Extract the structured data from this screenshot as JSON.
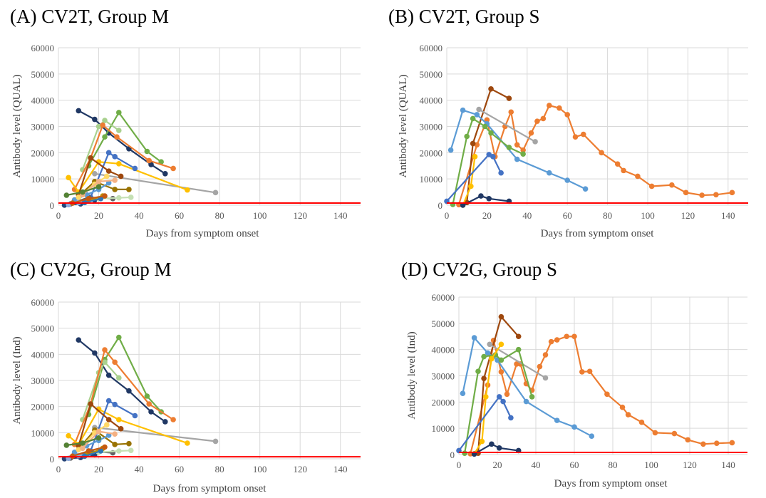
{
  "chart_data": [
    {
      "type": "line",
      "panel_title": "(A) CV2T, Group M",
      "xlabel": "Days from symptom onset",
      "ylabel": "Antibody level (QUAL)",
      "xlim": [
        0,
        150
      ],
      "ylim": [
        0,
        60000
      ],
      "xticks": [
        0,
        20,
        40,
        60,
        80,
        100,
        120,
        140
      ],
      "yticks": [
        0,
        10000,
        20000,
        30000,
        40000,
        50000,
        60000
      ],
      "grid": true,
      "threshold": {
        "y": 800,
        "color": "#ff0000"
      },
      "series": [
        {
          "color": "#203864",
          "x": [
            10,
            18,
            25,
            35,
            46,
            53
          ],
          "y": [
            36000,
            32700,
            27500,
            21500,
            15500,
            12000
          ]
        },
        {
          "color": "#70ad47",
          "x": [
            15,
            23,
            30,
            44,
            51
          ],
          "y": [
            15000,
            26000,
            35300,
            20500,
            16500
          ]
        },
        {
          "color": "#a9d18e",
          "x": [
            12,
            20,
            23,
            30
          ],
          "y": [
            13500,
            30000,
            32300,
            28500
          ]
        },
        {
          "color": "#ed7d31",
          "x": [
            8,
            16,
            22,
            29,
            45,
            57
          ],
          "y": [
            6000,
            18000,
            30500,
            26000,
            17000,
            14000
          ]
        },
        {
          "color": "#a5a5a5",
          "x": [
            18,
            78
          ],
          "y": [
            12000,
            4800
          ]
        },
        {
          "color": "#ffc000",
          "x": [
            5,
            10,
            20,
            30,
            64
          ],
          "y": [
            10500,
            5000,
            16500,
            15800,
            5800
          ]
        },
        {
          "color": "#4472c4",
          "x": [
            16,
            25,
            28,
            38
          ],
          "y": [
            3000,
            20000,
            18500,
            14000
          ]
        },
        {
          "color": "#9e480e",
          "x": [
            10,
            16,
            25,
            31
          ],
          "y": [
            4000,
            18000,
            13000,
            11000
          ]
        },
        {
          "color": "#997300",
          "x": [
            8,
            18,
            28,
            35
          ],
          "y": [
            2000,
            9000,
            6000,
            6000
          ]
        },
        {
          "color": "#636363",
          "x": [
            6,
            15,
            27
          ],
          "y": [
            500,
            3000,
            2500
          ]
        },
        {
          "color": "#5b9bd5",
          "x": [
            8,
            14,
            20,
            25
          ],
          "y": [
            2000,
            4000,
            6000,
            8500
          ]
        },
        {
          "color": "#ffd966",
          "x": [
            10,
            18,
            24
          ],
          "y": [
            3000,
            8000,
            11000
          ]
        },
        {
          "color": "#f4b183",
          "x": [
            12,
            20,
            28
          ],
          "y": [
            4000,
            9000,
            9500
          ]
        },
        {
          "color": "#548235",
          "x": [
            4,
            12,
            20
          ],
          "y": [
            3800,
            5000,
            7000
          ]
        },
        {
          "color": "#264478",
          "x": [
            3,
            11,
            18
          ],
          "y": [
            0,
            500,
            2000
          ]
        },
        {
          "color": "#8faadc",
          "x": [
            5,
            10,
            15
          ],
          "y": [
            200,
            1000,
            1600
          ]
        },
        {
          "color": "#c5e0b4",
          "x": [
            20,
            30,
            36
          ],
          "y": [
            2500,
            2800,
            3000
          ]
        },
        {
          "color": "#bf9000",
          "x": [
            14,
            22
          ],
          "y": [
            1500,
            3500
          ]
        },
        {
          "color": "#2e75b6",
          "x": [
            13,
            21
          ],
          "y": [
            1000,
            2500
          ]
        },
        {
          "color": "#c55a11",
          "x": [
            7,
            15,
            23
          ],
          "y": [
            800,
            2500,
            3500
          ]
        }
      ]
    },
    {
      "type": "line",
      "panel_title": "(B) CV2T, Group S",
      "xlabel": "Days from symptom onset",
      "ylabel": "Antibody level (QUAL)",
      "xlim": [
        0,
        150
      ],
      "ylim": [
        0,
        60000
      ],
      "xticks": [
        0,
        20,
        40,
        60,
        80,
        100,
        120,
        140
      ],
      "yticks": [
        0,
        10000,
        20000,
        30000,
        40000,
        50000,
        60000
      ],
      "grid": true,
      "threshold": {
        "y": 800,
        "color": "#ff0000"
      },
      "series": [
        {
          "color": "#ed7d31",
          "x": [
            6,
            15,
            20,
            24,
            29,
            32,
            35,
            38,
            42,
            45,
            48,
            51,
            56,
            60,
            64,
            68,
            77,
            85,
            88,
            95,
            102,
            112,
            119,
            127,
            134,
            142
          ],
          "y": [
            200,
            23000,
            32500,
            18500,
            30000,
            35500,
            23000,
            21000,
            27500,
            32000,
            33000,
            38000,
            37000,
            34500,
            26000,
            27000,
            20000,
            15700,
            13200,
            11000,
            7200,
            7700,
            4800,
            3800,
            4000,
            4800
          ]
        },
        {
          "color": "#9e480e",
          "x": [
            10,
            13,
            22,
            31
          ],
          "y": [
            1000,
            23500,
            44300,
            40700
          ]
        },
        {
          "color": "#5b9bd5",
          "x": [
            2,
            8,
            15,
            20,
            35,
            51,
            60,
            69
          ],
          "y": [
            21000,
            36200,
            34500,
            31000,
            17500,
            12300,
            9500,
            6200
          ]
        },
        {
          "color": "#a5a5a5",
          "x": [
            16,
            44
          ],
          "y": [
            36500,
            24200
          ]
        },
        {
          "color": "#70ad47",
          "x": [
            3,
            10,
            13,
            19,
            22,
            31,
            38
          ],
          "y": [
            300,
            26200,
            33000,
            30000,
            27500,
            22000,
            19500
          ]
        },
        {
          "color": "#ffc000",
          "x": [
            8,
            12,
            14
          ],
          "y": [
            0,
            7200,
            18500
          ]
        },
        {
          "color": "#4472c4",
          "x": [
            0,
            21,
            23,
            27
          ],
          "y": [
            1500,
            19300,
            18500,
            12300
          ]
        },
        {
          "color": "#203864",
          "x": [
            8,
            17,
            21,
            31
          ],
          "y": [
            0,
            3500,
            2500,
            1500
          ]
        }
      ]
    },
    {
      "type": "line",
      "panel_title": "(C) CV2G, Group M",
      "xlabel": "Days from symptom onset",
      "ylabel": "Antibody level (Ind)",
      "xlim": [
        0,
        150
      ],
      "ylim": [
        0,
        60000
      ],
      "xticks": [
        0,
        20,
        40,
        60,
        80,
        100,
        120,
        140
      ],
      "yticks": [
        0,
        10000,
        20000,
        30000,
        40000,
        50000,
        60000
      ],
      "grid": true,
      "threshold": {
        "y": 800,
        "color": "#ff0000"
      },
      "series": [
        {
          "color": "#203864",
          "x": [
            10,
            18,
            25,
            35,
            46,
            53
          ],
          "y": [
            45500,
            40500,
            32000,
            26000,
            18000,
            14200
          ]
        },
        {
          "color": "#70ad47",
          "x": [
            15,
            23,
            30,
            44,
            51
          ],
          "y": [
            17000,
            38000,
            46500,
            24000,
            18000
          ]
        },
        {
          "color": "#a9d18e",
          "x": [
            12,
            20,
            23,
            30
          ],
          "y": [
            15000,
            33000,
            37000,
            31000
          ]
        },
        {
          "color": "#ed7d31",
          "x": [
            8,
            16,
            23,
            28,
            45,
            57
          ],
          "y": [
            5500,
            21000,
            41700,
            37000,
            21000,
            15000
          ]
        },
        {
          "color": "#a5a5a5",
          "x": [
            18,
            78
          ],
          "y": [
            12000,
            6700
          ]
        },
        {
          "color": "#ffc000",
          "x": [
            5,
            10,
            20,
            30,
            64
          ],
          "y": [
            8800,
            5500,
            19000,
            15000,
            6000
          ]
        },
        {
          "color": "#4472c4",
          "x": [
            16,
            25,
            28,
            38
          ],
          "y": [
            3000,
            22200,
            20800,
            16500
          ]
        },
        {
          "color": "#9e480e",
          "x": [
            10,
            16,
            25,
            31
          ],
          "y": [
            5000,
            21000,
            15000,
            11500
          ]
        },
        {
          "color": "#997300",
          "x": [
            8,
            18,
            28,
            35
          ],
          "y": [
            2000,
            11000,
            5500,
            5800
          ]
        },
        {
          "color": "#636363",
          "x": [
            6,
            15,
            27
          ],
          "y": [
            300,
            3000,
            2300
          ]
        },
        {
          "color": "#5b9bd5",
          "x": [
            8,
            14,
            20,
            25
          ],
          "y": [
            2500,
            5000,
            7000,
            9000
          ]
        },
        {
          "color": "#ffd966",
          "x": [
            10,
            18,
            24
          ],
          "y": [
            3500,
            10000,
            13000
          ]
        },
        {
          "color": "#f4b183",
          "x": [
            12,
            20,
            28
          ],
          "y": [
            4000,
            10500,
            9500
          ]
        },
        {
          "color": "#548235",
          "x": [
            4,
            12,
            20
          ],
          "y": [
            5200,
            6000,
            8000
          ]
        },
        {
          "color": "#264478",
          "x": [
            3,
            11,
            18
          ],
          "y": [
            0,
            500,
            1500
          ]
        },
        {
          "color": "#8faadc",
          "x": [
            5,
            10,
            15
          ],
          "y": [
            200,
            1200,
            2000
          ]
        },
        {
          "color": "#c5e0b4",
          "x": [
            20,
            30,
            36
          ],
          "y": [
            2500,
            3000,
            3200
          ]
        },
        {
          "color": "#bf9000",
          "x": [
            14,
            22
          ],
          "y": [
            1500,
            4000
          ]
        },
        {
          "color": "#2e75b6",
          "x": [
            13,
            21
          ],
          "y": [
            1000,
            3000
          ]
        },
        {
          "color": "#c55a11",
          "x": [
            7,
            15,
            23
          ],
          "y": [
            1000,
            3000,
            4500
          ]
        }
      ]
    },
    {
      "type": "line",
      "panel_title": "(D) CV2G, Group S",
      "xlabel": "Days from symptom onset",
      "ylabel": "Antibody level (Ind)",
      "xlim": [
        0,
        150
      ],
      "ylim": [
        0,
        60000
      ],
      "xticks": [
        0,
        20,
        40,
        60,
        80,
        100,
        120,
        140
      ],
      "yticks": [
        0,
        10000,
        20000,
        30000,
        40000,
        50000,
        60000
      ],
      "grid": true,
      "threshold": {
        "y": 800,
        "color": "#ff0000"
      },
      "series": [
        {
          "color": "#ed7d31",
          "x": [
            6,
            15,
            18,
            22,
            25,
            30,
            32,
            35,
            38,
            42,
            45,
            48,
            51,
            56,
            60,
            64,
            68,
            77,
            85,
            88,
            95,
            102,
            112,
            119,
            127,
            134,
            142
          ],
          "y": [
            300,
            26500,
            43500,
            31500,
            23000,
            34500,
            34500,
            27000,
            24500,
            33500,
            38000,
            43000,
            43700,
            45000,
            45000,
            31500,
            31700,
            23000,
            18000,
            15200,
            12300,
            8300,
            8000,
            5600,
            4000,
            4300,
            4500
          ]
        },
        {
          "color": "#9e480e",
          "x": [
            10,
            13,
            22,
            31
          ],
          "y": [
            500,
            29000,
            52500,
            45000
          ]
        },
        {
          "color": "#5b9bd5",
          "x": [
            2,
            8,
            15,
            20,
            35,
            51,
            60,
            69
          ],
          "y": [
            23300,
            44500,
            38700,
            36000,
            20200,
            13000,
            10500,
            7000
          ]
        },
        {
          "color": "#a5a5a5",
          "x": [
            16,
            45
          ],
          "y": [
            42000,
            29200
          ]
        },
        {
          "color": "#70ad47",
          "x": [
            3,
            10,
            13,
            19,
            22,
            31,
            38
          ],
          "y": [
            500,
            31700,
            37300,
            38000,
            36000,
            40000,
            22000
          ]
        },
        {
          "color": "#ffc000",
          "x": [
            8,
            12,
            14,
            17,
            22
          ],
          "y": [
            300,
            5000,
            22000,
            36500,
            42000
          ]
        },
        {
          "color": "#4472c4",
          "x": [
            0,
            21,
            23,
            27
          ],
          "y": [
            1500,
            22000,
            20200,
            14000
          ]
        },
        {
          "color": "#203864",
          "x": [
            8,
            17,
            21,
            31
          ],
          "y": [
            200,
            4000,
            2500,
            1500
          ]
        }
      ]
    }
  ]
}
